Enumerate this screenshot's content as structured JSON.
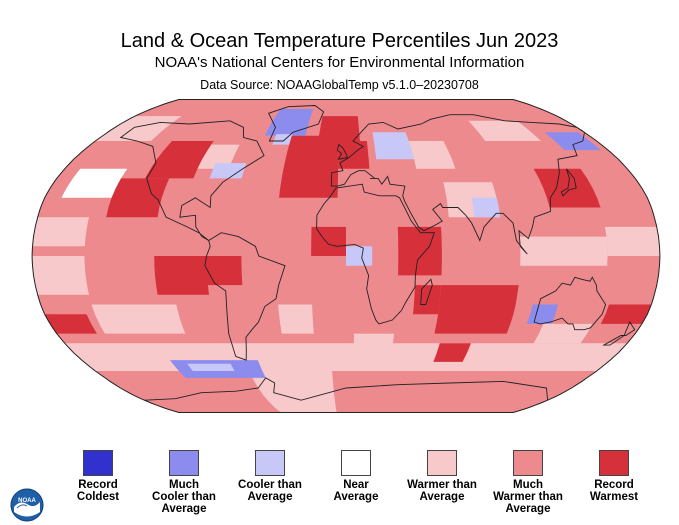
{
  "header": {
    "title": "Land & Ocean Temperature Percentiles Jun 2023",
    "subtitle": "NOAA's National Centers for Environmental Information",
    "source": "Data Source: NOAAGlobalTemp v5.1.0–20230708"
  },
  "map": {
    "projection": "robinson",
    "colors": {
      "record_warmest": "#d6303a",
      "much_warmer": "#ec8a8e",
      "warmer": "#f8c9cb",
      "near": "#ffffff",
      "cooler": "#c8c8f8",
      "much_cooler": "#8c8cee",
      "record_coldest": "#3131d0",
      "coast": "#222222"
    }
  },
  "legend": {
    "items": [
      {
        "label": "Record\nColdest",
        "color": "#3131d0"
      },
      {
        "label": "Much\nCooler than\nAverage",
        "color": "#8c8cee"
      },
      {
        "label": "Cooler than\nAverage",
        "color": "#c8c8f8"
      },
      {
        "label": "Near\nAverage",
        "color": "#ffffff"
      },
      {
        "label": "Warmer than\nAverage",
        "color": "#f8c9cb"
      },
      {
        "label": "Much\nWarmer than\nAverage",
        "color": "#ec8a8e"
      },
      {
        "label": "Record\nWarmest",
        "color": "#d6303a"
      }
    ]
  },
  "logo": {
    "icon": "noaa-logo-icon",
    "text": "NOAA"
  }
}
